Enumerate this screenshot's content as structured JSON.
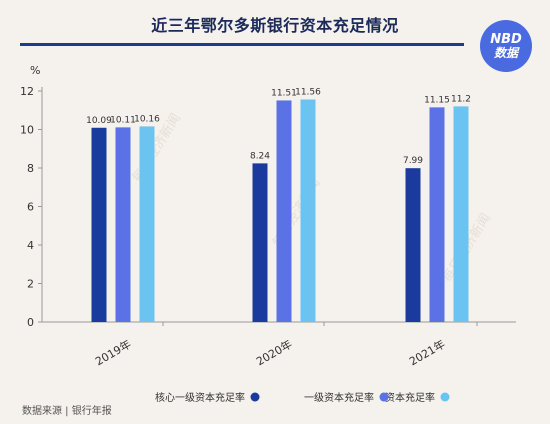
{
  "title": "近三年鄂尔多斯银行资本充足情况",
  "logo": {
    "line1": "NBD",
    "line2": "数据"
  },
  "watermark": "每日经济新闻",
  "source": "数据来源 | 银行年报",
  "colors": {
    "title": "#1b2a5a",
    "rule": "#1c3d8f",
    "logo_bg": "#4a6ae0",
    "background": "#f5f1ec"
  },
  "chart_data": {
    "type": "bar",
    "categories": [
      "2019年",
      "2020年",
      "2021年"
    ],
    "series": [
      {
        "name": "核心一级资本充足率",
        "color": "#1a3a9e",
        "values": [
          10.09,
          8.24,
          7.99
        ]
      },
      {
        "name": "一级资本充足率",
        "color": "#5b72e6",
        "values": [
          10.11,
          11.51,
          11.15
        ]
      },
      {
        "name": "资本充足率",
        "color": "#6bc3f2",
        "values": [
          10.16,
          11.56,
          11.2
        ]
      }
    ],
    "yunit": "%",
    "ylim": [
      0,
      12
    ],
    "yticks": [
      "0",
      "2",
      "4",
      "6",
      "8",
      "10",
      "12"
    ],
    "data_labels": [
      [
        "10.09",
        "10.11",
        "10.16"
      ],
      [
        "8.24",
        "11.51",
        "11.56"
      ],
      [
        "7.99",
        "11.15",
        "11.2"
      ]
    ],
    "grid": false,
    "legend": "bottom"
  }
}
